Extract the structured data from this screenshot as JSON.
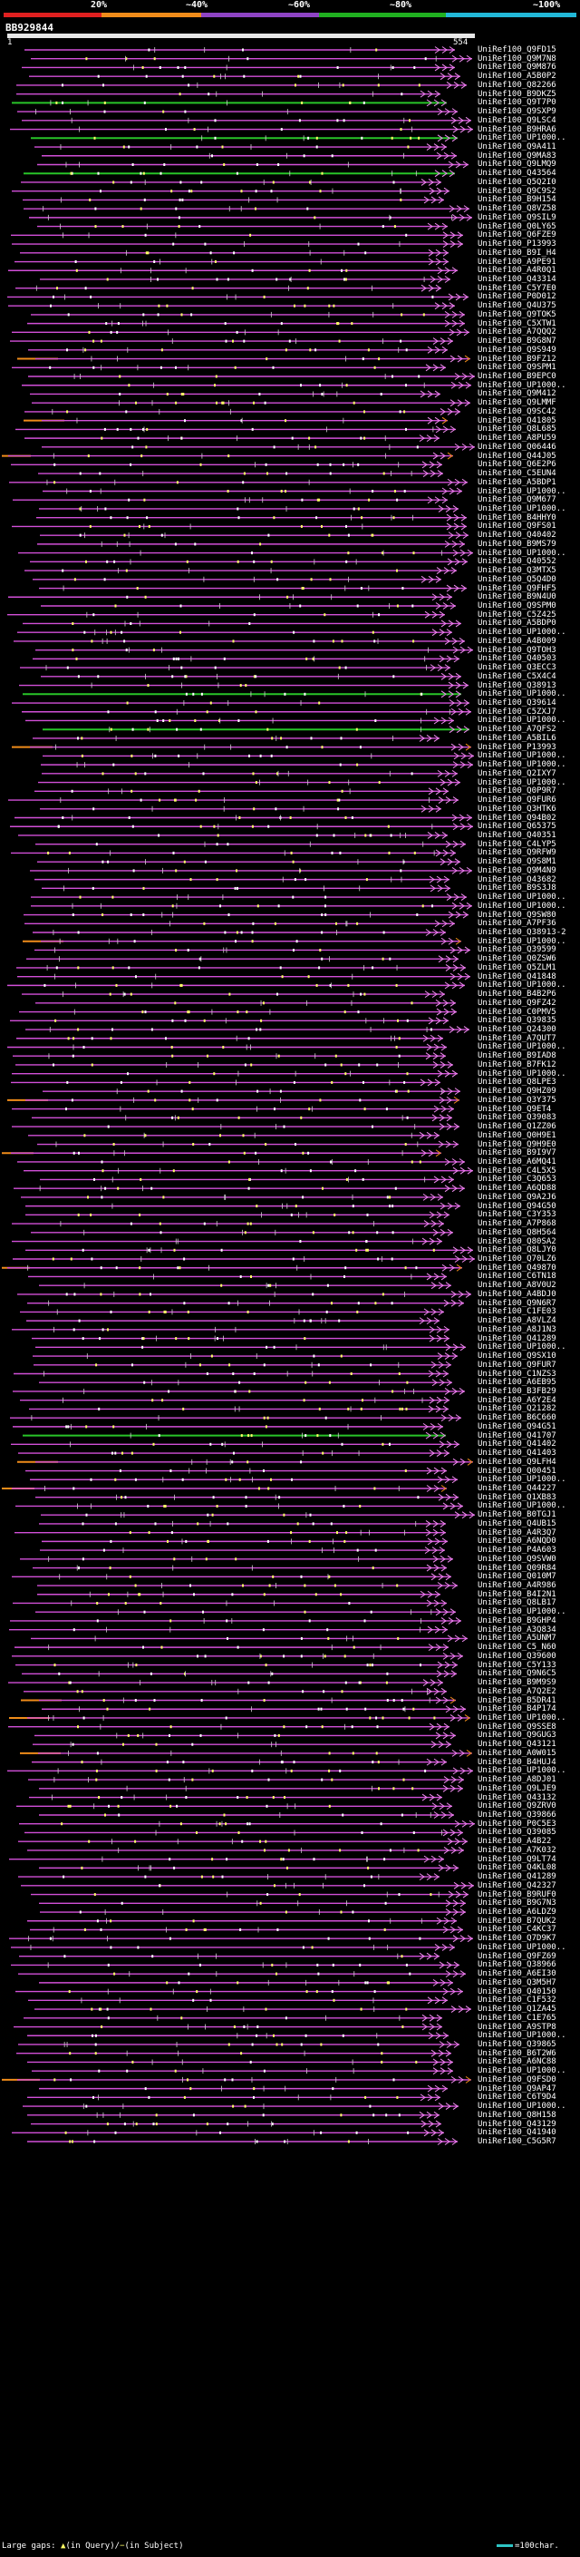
{
  "legend": {
    "items": [
      {
        "label": "20%",
        "color": "#e02020"
      },
      {
        "label": "~40%",
        "color": "#f08c1a"
      },
      {
        "label": "~60%",
        "color": "#8e44c4"
      },
      {
        "label": "~80%",
        "color": "#20b020"
      },
      {
        "label": "~100%",
        "color": "#22b8d8"
      }
    ]
  },
  "query": {
    "id": "BB929844",
    "start": "1",
    "end": "554"
  },
  "hit_colors": {
    "line": "#d24fd8",
    "green": "#28c428",
    "orange": "#f08c1a",
    "dot": "#ffff66"
  },
  "hits": [
    {
      "id": "UniRef100_Q9FD15",
      "color": "pink"
    },
    {
      "id": "UniRef100_Q9M7N8",
      "color": "pink"
    },
    {
      "id": "UniRef100_Q9M876",
      "color": "pink"
    },
    {
      "id": "UniRef100_A5B0P2",
      "color": "pink"
    },
    {
      "id": "UniRef100_Q82266",
      "color": "pink"
    },
    {
      "id": "UniRef100_B9DKZ5",
      "color": "pink"
    },
    {
      "id": "UniRef100_Q9T7P0",
      "color": "green"
    },
    {
      "id": "UniRef100_Q9SXP9",
      "color": "pink"
    },
    {
      "id": "UniRef100_Q9LSC4",
      "color": "pink"
    },
    {
      "id": "UniRef100_B9HRA6",
      "color": "pink"
    },
    {
      "id": "UniRef100_UP1000..",
      "color": "green"
    },
    {
      "id": "UniRef100_Q9A411",
      "color": "pink"
    },
    {
      "id": "UniRef100_Q9MA83",
      "color": "pink"
    },
    {
      "id": "UniRef100_Q9LMQ9",
      "color": "pink"
    },
    {
      "id": "UniRef100_Q43564",
      "color": "green"
    },
    {
      "id": "UniRef100_Q5Q2I0",
      "color": "pink"
    },
    {
      "id": "UniRef100_Q9C9S2",
      "color": "pink"
    },
    {
      "id": "UniRef100_B9H154",
      "color": "pink"
    },
    {
      "id": "UniRef100_Q8VZ58",
      "color": "pink"
    },
    {
      "id": "UniRef100_Q9SIL9",
      "color": "pink"
    },
    {
      "id": "UniRef100_Q0LY65",
      "color": "pink"
    },
    {
      "id": "UniRef100_Q6FZE9",
      "color": "pink"
    },
    {
      "id": "UniRef100_P13993",
      "color": "pink"
    },
    {
      "id": "UniRef100_B9I_H4",
      "color": "pink"
    },
    {
      "id": "UniRef100_A9PE91",
      "color": "pink"
    },
    {
      "id": "UniRef100_A4R0Q1",
      "color": "pink"
    },
    {
      "id": "UniRef100_Q43314",
      "color": "pink"
    },
    {
      "id": "UniRef100_C5Y7E0",
      "color": "pink"
    },
    {
      "id": "UniRef100_P0D012",
      "color": "pink"
    },
    {
      "id": "UniRef100_Q4U375",
      "color": "pink"
    },
    {
      "id": "UniRef100_Q9TOK5",
      "color": "pink"
    },
    {
      "id": "UniRef100_C5XTW1",
      "color": "pink"
    },
    {
      "id": "UniRef100_A7QQQ2",
      "color": "pink"
    },
    {
      "id": "UniRef100_B9G8N7",
      "color": "pink"
    },
    {
      "id": "UniRef100_Q9S949",
      "color": "pink"
    },
    {
      "id": "UniRef100_B9FZ12",
      "color": "orange"
    },
    {
      "id": "UniRef100_Q9SPM1",
      "color": "pink"
    },
    {
      "id": "UniRef100_B9EPC0",
      "color": "pink"
    },
    {
      "id": "UniRef100_UP1000..",
      "color": "pink"
    },
    {
      "id": "UniRef100_Q9M412",
      "color": "pink"
    },
    {
      "id": "UniRef100_Q9LMMF",
      "color": "pink"
    },
    {
      "id": "UniRef100_Q9SC42",
      "color": "pink"
    },
    {
      "id": "UniRef100_Q41805",
      "color": "orange"
    },
    {
      "id": "UniRef100_Q8L685",
      "color": "pink"
    },
    {
      "id": "UniRef100_A8PU59",
      "color": "pink"
    },
    {
      "id": "UniRef100_Q06446",
      "color": "pink"
    },
    {
      "id": "UniRef100_Q44J05",
      "color": "orange"
    },
    {
      "id": "UniRef100_Q6E2P6",
      "color": "pink"
    },
    {
      "id": "UniRef100_C5EUN4",
      "color": "pink"
    },
    {
      "id": "UniRef100_A5BDP1",
      "color": "pink"
    },
    {
      "id": "UniRef100_UP1000..",
      "color": "pink"
    },
    {
      "id": "UniRef100_Q9M677",
      "color": "pink"
    },
    {
      "id": "UniRef100_UP1000..",
      "color": "pink"
    },
    {
      "id": "UniRef100_B4HHY0",
      "color": "pink"
    },
    {
      "id": "UniRef100_Q9FS01",
      "color": "pink"
    },
    {
      "id": "UniRef100_Q40402",
      "color": "pink"
    },
    {
      "id": "UniRef100_B9MS79",
      "color": "pink"
    },
    {
      "id": "UniRef100_UP1000..",
      "color": "pink"
    },
    {
      "id": "UniRef100_Q40552",
      "color": "pink"
    },
    {
      "id": "UniRef100_Q3MTX5",
      "color": "pink"
    },
    {
      "id": "UniRef100_Q5Q4D0",
      "color": "pink"
    },
    {
      "id": "UniRef100_Q9FHF5",
      "color": "pink"
    },
    {
      "id": "UniRef100_B9N4U0",
      "color": "pink"
    },
    {
      "id": "UniRef100_Q9SPM0",
      "color": "pink"
    },
    {
      "id": "UniRef100_C5Z425",
      "color": "pink"
    },
    {
      "id": "UniRef100_A5BDP0",
      "color": "pink"
    },
    {
      "id": "UniRef100_UP1000..",
      "color": "pink"
    },
    {
      "id": "UniRef100_A4B009",
      "color": "pink"
    },
    {
      "id": "UniRef100_Q9TOH3",
      "color": "pink"
    },
    {
      "id": "UniRef100_Q40503",
      "color": "pink"
    },
    {
      "id": "UniRef100_Q3ECC3",
      "color": "pink"
    },
    {
      "id": "UniRef100_C5X4C4",
      "color": "pink"
    },
    {
      "id": "UniRef100_Q38913",
      "color": "pink"
    },
    {
      "id": "UniRef100_UP1000..",
      "color": "green"
    },
    {
      "id": "UniRef100_Q39614",
      "color": "pink"
    },
    {
      "id": "UniRef100_C5ZXJ7",
      "color": "pink"
    },
    {
      "id": "UniRef100_UP1000..",
      "color": "pink"
    },
    {
      "id": "UniRef100_A7QFS2",
      "color": "green"
    },
    {
      "id": "UniRef100_A5BIL6",
      "color": "pink"
    },
    {
      "id": "UniRef100_P13993",
      "color": "orange"
    },
    {
      "id": "UniRef100_UP1000..",
      "color": "pink"
    },
    {
      "id": "UniRef100_UP1000..",
      "color": "pink"
    },
    {
      "id": "UniRef100_Q2IXY7",
      "color": "pink"
    },
    {
      "id": "UniRef100_UP1000..",
      "color": "pink"
    },
    {
      "id": "UniRef100_Q0P9R7",
      "color": "pink"
    },
    {
      "id": "UniRef100_Q9FUR6",
      "color": "pink"
    },
    {
      "id": "UniRef100_Q3HTK6",
      "color": "pink"
    },
    {
      "id": "UniRef100_Q94B02",
      "color": "pink"
    },
    {
      "id": "UniRef100_Q65375",
      "color": "pink"
    },
    {
      "id": "UniRef100_Q40351",
      "color": "pink"
    },
    {
      "id": "UniRef100_C4LYP5",
      "color": "pink"
    },
    {
      "id": "UniRef100_Q9RFW9",
      "color": "pink"
    },
    {
      "id": "UniRef100_Q9S8M1",
      "color": "pink"
    },
    {
      "id": "UniRef100_Q9M4N9",
      "color": "pink"
    },
    {
      "id": "UniRef100_Q43682",
      "color": "pink"
    },
    {
      "id": "UniRef100_B9S3J8",
      "color": "pink"
    },
    {
      "id": "UniRef100_UP1000..",
      "color": "pink"
    },
    {
      "id": "UniRef100_UP1000..",
      "color": "pink"
    },
    {
      "id": "UniRef100_Q9SW80",
      "color": "pink"
    },
    {
      "id": "UniRef100_A7PF36",
      "color": "pink"
    },
    {
      "id": "UniRef100_Q38913-2",
      "color": "pink"
    },
    {
      "id": "UniRef100_UP1000..",
      "color": "orange"
    },
    {
      "id": "UniRef100_Q39599",
      "color": "pink"
    },
    {
      "id": "UniRef100_Q0ZSW6",
      "color": "pink"
    },
    {
      "id": "UniRef100_Q5ZLM1",
      "color": "pink"
    },
    {
      "id": "UniRef100_Q41848",
      "color": "pink"
    },
    {
      "id": "UniRef100_UP1000..",
      "color": "pink"
    },
    {
      "id": "UniRef100_B4B2P6",
      "color": "pink"
    },
    {
      "id": "UniRef100_Q9FZ42",
      "color": "pink"
    },
    {
      "id": "UniRef100_C0PMV5",
      "color": "pink"
    },
    {
      "id": "UniRef100_Q39835",
      "color": "pink"
    },
    {
      "id": "UniRef100_Q24300",
      "color": "pink"
    },
    {
      "id": "UniRef100_A7QUT7",
      "color": "pink"
    },
    {
      "id": "UniRef100_UP1000..",
      "color": "pink"
    },
    {
      "id": "UniRef100_B9IAD8",
      "color": "pink"
    },
    {
      "id": "UniRef100_B7FK12",
      "color": "pink"
    },
    {
      "id": "UniRef100_UP1000..",
      "color": "pink"
    },
    {
      "id": "UniRef100_Q8LPE3",
      "color": "pink"
    },
    {
      "id": "UniRef100_Q9HZ09",
      "color": "pink"
    },
    {
      "id": "UniRef100_Q3Y375",
      "color": "orange"
    },
    {
      "id": "UniRef100_Q9ET4",
      "color": "pink"
    },
    {
      "id": "UniRef100_Q39083",
      "color": "pink"
    },
    {
      "id": "UniRef100_Q1ZZ06",
      "color": "pink"
    },
    {
      "id": "UniRef100_Q0H9E1",
      "color": "pink"
    },
    {
      "id": "UniRef100_Q9H9E0",
      "color": "pink"
    },
    {
      "id": "UniRef100_B9I9V7",
      "color": "orange"
    },
    {
      "id": "UniRef100_A6MQ41",
      "color": "pink"
    },
    {
      "id": "UniRef100_C4L5X5",
      "color": "pink"
    },
    {
      "id": "UniRef100_C3Q653",
      "color": "pink"
    },
    {
      "id": "UniRef100_A6QD88",
      "color": "pink"
    },
    {
      "id": "UniRef100_Q9A2J6",
      "color": "pink"
    },
    {
      "id": "UniRef100_Q94G50",
      "color": "pink"
    },
    {
      "id": "UniRef100_C3Y353",
      "color": "pink"
    },
    {
      "id": "UniRef100_A7P868",
      "color": "pink"
    },
    {
      "id": "UniRef100_Q8H564",
      "color": "pink"
    },
    {
      "id": "UniRef100_Q80SA2",
      "color": "pink"
    },
    {
      "id": "UniRef100_Q8LJY0",
      "color": "pink"
    },
    {
      "id": "UniRef100_Q70LZ6",
      "color": "pink"
    },
    {
      "id": "UniRef100_Q49870",
      "color": "orange"
    },
    {
      "id": "UniRef100_C6TN18",
      "color": "pink"
    },
    {
      "id": "UniRef100_A8V0U2",
      "color": "pink"
    },
    {
      "id": "UniRef100_A4BDJ0",
      "color": "pink"
    },
    {
      "id": "UniRef100_Q9N6R7",
      "color": "pink"
    },
    {
      "id": "UniRef100_C1FE03",
      "color": "pink"
    },
    {
      "id": "UniRef100_A8VLZ4",
      "color": "pink"
    },
    {
      "id": "UniRef100_A8J1N3",
      "color": "pink"
    },
    {
      "id": "UniRef100_Q41289",
      "color": "pink"
    },
    {
      "id": "UniRef100_UP1000..",
      "color": "pink"
    },
    {
      "id": "UniRef100_Q9SX10",
      "color": "pink"
    },
    {
      "id": "UniRef100_Q9FUR7",
      "color": "pink"
    },
    {
      "id": "UniRef100_C1NZS3",
      "color": "pink"
    },
    {
      "id": "UniRef100_A6EB95",
      "color": "pink"
    },
    {
      "id": "UniRef100_B3FB29",
      "color": "pink"
    },
    {
      "id": "UniRef100_A6Y2E4",
      "color": "pink"
    },
    {
      "id": "UniRef100_Q21282",
      "color": "pink"
    },
    {
      "id": "UniRef100_B6C660",
      "color": "pink"
    },
    {
      "id": "UniRef100_Q94G51",
      "color": "pink"
    },
    {
      "id": "UniRef100_Q41707",
      "color": "green"
    },
    {
      "id": "UniRef100_Q41402",
      "color": "pink"
    },
    {
      "id": "UniRef100_Q41403",
      "color": "pink"
    },
    {
      "id": "UniRef100_Q9LFH4",
      "color": "orange"
    },
    {
      "id": "UniRef100_Q00451",
      "color": "pink"
    },
    {
      "id": "UniRef100_UP1000..",
      "color": "pink"
    },
    {
      "id": "UniRef100_Q44227",
      "color": "orange"
    },
    {
      "id": "UniRef100_Q1XB83",
      "color": "pink"
    },
    {
      "id": "UniRef100_UP1000..",
      "color": "pink"
    },
    {
      "id": "UniRef100_B0TGJ1",
      "color": "pink"
    },
    {
      "id": "UniRef100_Q4UB15",
      "color": "pink"
    },
    {
      "id": "UniRef100_A4R3Q7",
      "color": "pink"
    },
    {
      "id": "UniRef100_A6NQD0",
      "color": "pink"
    },
    {
      "id": "UniRef100_P4A603",
      "color": "pink"
    },
    {
      "id": "UniRef100_Q9SVW0",
      "color": "pink"
    },
    {
      "id": "UniRef100_Q09R84",
      "color": "pink"
    },
    {
      "id": "UniRef100_Q010M7",
      "color": "pink"
    },
    {
      "id": "UniRef100_A4R986",
      "color": "pink"
    },
    {
      "id": "UniRef100_B4I2N1",
      "color": "pink"
    },
    {
      "id": "UniRef100_Q8LB17",
      "color": "pink"
    },
    {
      "id": "UniRef100_UP1000..",
      "color": "pink"
    },
    {
      "id": "UniRef100_B9GHP4",
      "color": "pink"
    },
    {
      "id": "UniRef100_A3Q834",
      "color": "pink"
    },
    {
      "id": "UniRef100_A5UNM7",
      "color": "pink"
    },
    {
      "id": "UniRef100_C5_N60",
      "color": "pink"
    },
    {
      "id": "UniRef100_Q39600",
      "color": "pink"
    },
    {
      "id": "UniRef100_C5Y133",
      "color": "pink"
    },
    {
      "id": "UniRef100_Q9N6C5",
      "color": "pink"
    },
    {
      "id": "UniRef100_B9M9S9",
      "color": "pink"
    },
    {
      "id": "UniRef100_A7Q2E2",
      "color": "pink"
    },
    {
      "id": "UniRef100_B5DR41",
      "color": "orange"
    },
    {
      "id": "UniRef100_B4P174",
      "color": "pink"
    },
    {
      "id": "UniRef100_UP1000..",
      "color": "orange"
    },
    {
      "id": "UniRef100_Q9SSE8",
      "color": "pink"
    },
    {
      "id": "UniRef100_Q9GUG3",
      "color": "pink"
    },
    {
      "id": "UniRef100_Q43121",
      "color": "pink"
    },
    {
      "id": "UniRef100_A0W015",
      "color": "orange"
    },
    {
      "id": "UniRef100_B4HUJ4",
      "color": "pink"
    },
    {
      "id": "UniRef100_UP1000..",
      "color": "pink"
    },
    {
      "id": "UniRef100_A8DJ01",
      "color": "pink"
    },
    {
      "id": "UniRef100_Q9LJE9",
      "color": "pink"
    },
    {
      "id": "UniRef100_Q43132",
      "color": "pink"
    },
    {
      "id": "UniRef100_Q9ZRV0",
      "color": "pink"
    },
    {
      "id": "UniRef100_Q39866",
      "color": "pink"
    },
    {
      "id": "UniRef100_P0C5E3",
      "color": "pink"
    },
    {
      "id": "UniRef100_Q39085",
      "color": "pink"
    },
    {
      "id": "UniRef100_A4B22",
      "color": "pink"
    },
    {
      "id": "UniRef100_A7K032",
      "color": "pink"
    },
    {
      "id": "UniRef100_Q9LT74",
      "color": "pink"
    },
    {
      "id": "UniRef100_Q4KL08",
      "color": "pink"
    },
    {
      "id": "UniRef100_Q41289",
      "color": "pink"
    },
    {
      "id": "UniRef100_Q42327",
      "color": "pink"
    },
    {
      "id": "UniRef100_B9RUF0",
      "color": "pink"
    },
    {
      "id": "UniRef100_B9G7N3",
      "color": "pink"
    },
    {
      "id": "UniRef100_A6LDZ9",
      "color": "pink"
    },
    {
      "id": "UniRef100_B7QUK2",
      "color": "pink"
    },
    {
      "id": "UniRef100_C4KC37",
      "color": "pink"
    },
    {
      "id": "UniRef100_Q7D9K7",
      "color": "pink"
    },
    {
      "id": "UniRef100_UP1000..",
      "color": "pink"
    },
    {
      "id": "UniRef100_Q9FZ69",
      "color": "pink"
    },
    {
      "id": "UniRef100_Q38966",
      "color": "pink"
    },
    {
      "id": "UniRef100_A6EI30",
      "color": "pink"
    },
    {
      "id": "UniRef100_Q3M5H7",
      "color": "pink"
    },
    {
      "id": "UniRef100_Q40150",
      "color": "pink"
    },
    {
      "id": "UniRef100_C1F532",
      "color": "pink"
    },
    {
      "id": "UniRef100_Q1ZA45",
      "color": "pink"
    },
    {
      "id": "UniRef100_C1E765",
      "color": "pink"
    },
    {
      "id": "UniRef100_A9STP8",
      "color": "pink"
    },
    {
      "id": "UniRef100_UP1000..",
      "color": "pink"
    },
    {
      "id": "UniRef100_Q39865",
      "color": "pink"
    },
    {
      "id": "UniRef100_B6T2W6",
      "color": "pink"
    },
    {
      "id": "UniRef100_A6NC88",
      "color": "pink"
    },
    {
      "id": "UniRef100_UP1000..",
      "color": "pink"
    },
    {
      "id": "UniRef100_Q9FSD0",
      "color": "orange"
    },
    {
      "id": "UniRef100_Q9AP47",
      "color": "pink"
    },
    {
      "id": "UniRef100_C6T9D4",
      "color": "pink"
    },
    {
      "id": "UniRef100_UP1000..",
      "color": "pink"
    },
    {
      "id": "UniRef100_Q8H158",
      "color": "pink"
    },
    {
      "id": "UniRef100_Q43129",
      "color": "pink"
    },
    {
      "id": "UniRef100_Q41940",
      "color": "pink"
    },
    {
      "id": "UniRef100_C5G5R7",
      "color": "pink"
    }
  ],
  "footer": {
    "gap_prefix": "Large gaps: ",
    "gap_query": "(in Query)",
    "gap_sep": "/",
    "gap_subject": "(in Subject)",
    "scale_text": "=100char."
  }
}
